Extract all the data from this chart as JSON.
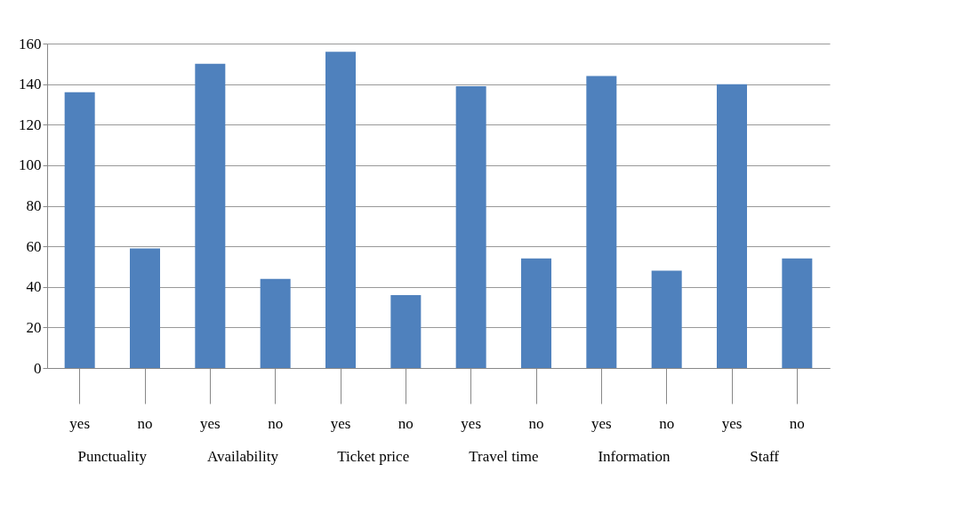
{
  "chart_data": {
    "type": "bar",
    "categories": [
      "yes",
      "no",
      "yes",
      "no",
      "yes",
      "no",
      "yes",
      "no",
      "yes",
      "no",
      "yes",
      "no"
    ],
    "values": [
      136,
      59,
      150,
      44,
      156,
      36,
      139,
      54,
      144,
      48,
      140,
      54
    ],
    "color": "#4f81bd",
    "ylim": [
      0,
      160
    ],
    "yticks": [
      0,
      20,
      40,
      60,
      80,
      100,
      120,
      140,
      160
    ],
    "grid": "y",
    "annotations": [
      "Punctuality",
      "Availability",
      "Ticket price",
      "Travel time",
      "Information",
      "Staff"
    ]
  }
}
